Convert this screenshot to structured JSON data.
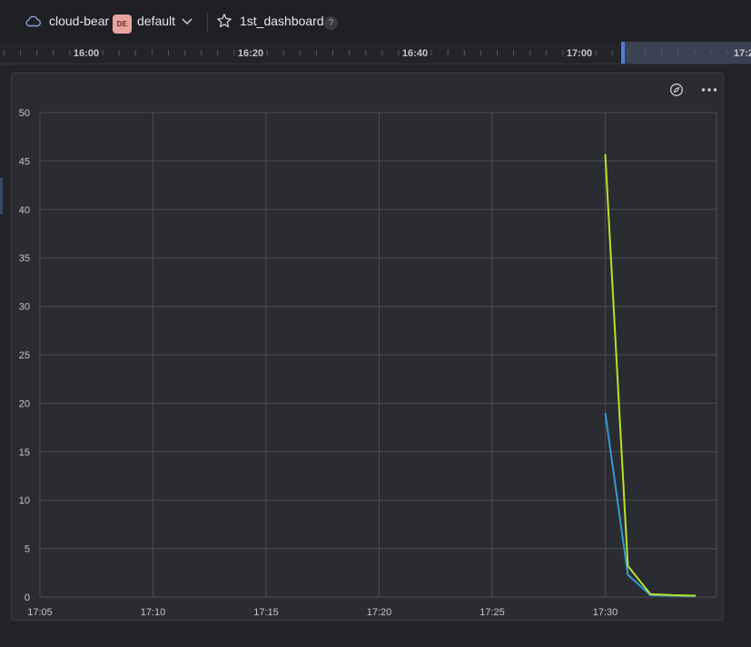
{
  "header": {
    "project_name": "cloud-bear",
    "env_badge": "DE",
    "env_name": "default",
    "dashboard_name": "1st_dashboard",
    "help_label": "?"
  },
  "timeline": {
    "labels": [
      "16:00",
      "16:20",
      "16:40",
      "17:00",
      "17:2"
    ]
  },
  "icons": {
    "cloud": "cloud-icon",
    "chevron": "chevron-down-icon",
    "star": "star-icon",
    "help": "help-icon",
    "explore": "compass-icon",
    "more": "more-horizontal-icon"
  },
  "chart_data": {
    "type": "line",
    "x_ticks": [
      "17:05",
      "17:10",
      "17:15",
      "17:20",
      "17:25",
      "17:30"
    ],
    "x_tick_minutes": [
      0,
      5,
      10,
      15,
      20,
      25
    ],
    "y_ticks": [
      0,
      5,
      10,
      15,
      20,
      25,
      30,
      35,
      40,
      45,
      50
    ],
    "ylim": [
      0,
      50
    ],
    "grid": true,
    "series": [
      {
        "color": "#2f9bd6",
        "points": [
          [
            25,
            19.0
          ],
          [
            26,
            2.3
          ],
          [
            27,
            0.2
          ],
          [
            28,
            0.15
          ],
          [
            29,
            0.1
          ]
        ]
      },
      {
        "color": "#b6e22a",
        "points": [
          [
            25,
            45.7
          ],
          [
            26,
            3.2
          ],
          [
            27,
            0.3
          ],
          [
            28,
            0.2
          ],
          [
            29,
            0.15
          ]
        ]
      }
    ]
  }
}
